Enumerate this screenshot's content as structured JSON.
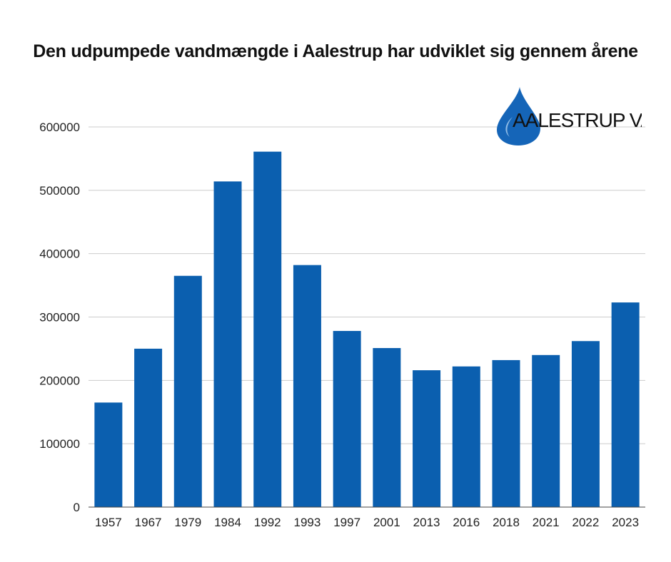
{
  "title": "Den udpumpede vandmængde i Aalestrup har udviklet sig gennem årene",
  "logo": {
    "text": "AALESTRUP VAND",
    "icon": "water-drop-icon"
  },
  "colors": {
    "bar": "#0B5FAF",
    "grid": "#cccccc",
    "axis": "#444444",
    "logo_drop": "#1565B8"
  },
  "chart_data": {
    "type": "bar",
    "title": "Den udpumpede vandmængde i Aalestrup har udviklet sig gennem årene",
    "xlabel": "",
    "ylabel": "",
    "categories": [
      "1957",
      "1967",
      "1979",
      "1984",
      "1992",
      "1993",
      "1997",
      "2001",
      "2013",
      "2016",
      "2018",
      "2021",
      "2022",
      "2023"
    ],
    "values": [
      165000,
      250000,
      365000,
      514000,
      561000,
      382000,
      278000,
      251000,
      216000,
      222000,
      232000,
      240000,
      262000,
      323000
    ],
    "ylim": [
      0,
      600000
    ],
    "yticks": [
      "0",
      "100000",
      "200000",
      "300000",
      "400000",
      "500000",
      "600000"
    ],
    "grid": true,
    "legend": "none"
  }
}
